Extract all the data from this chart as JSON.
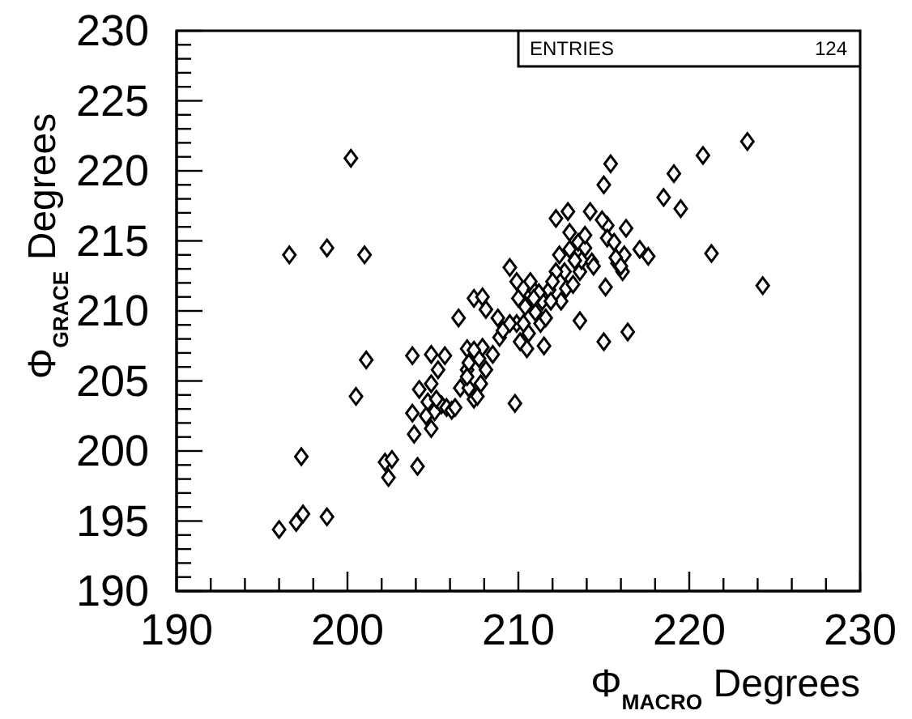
{
  "chart_data": {
    "type": "scatter",
    "xlabel": "Φ$_{MACRO}$ Degrees",
    "ylabel": "Φ$_{GRACE}$ Degrees",
    "annotations": [
      "ENTRIES",
      "124"
    ],
    "marker": "diamond",
    "grid": false,
    "xlim": [
      190,
      230
    ],
    "ylim": [
      190,
      230
    ],
    "xticks": [
      190,
      {
        "value": 192,
        "label": null
      },
      {
        "value": 194,
        "label": null
      },
      {
        "value": 196,
        "label": null
      },
      {
        "value": 198,
        "label": null
      },
      200,
      {
        "value": 202,
        "label": null
      },
      {
        "value": 204,
        "label": null
      },
      {
        "value": 206,
        "label": null
      },
      {
        "value": 208,
        "label": null
      },
      210,
      {
        "value": 212,
        "label": null
      },
      {
        "value": 214,
        "label": null
      },
      {
        "value": 216,
        "label": null
      },
      {
        "value": 218,
        "label": null
      },
      220,
      {
        "value": 222,
        "label": null
      },
      {
        "value": 224,
        "label": null
      },
      {
        "value": 226,
        "label": null
      },
      {
        "value": 228,
        "label": null
      },
      230
    ],
    "yticks": [
      190,
      {
        "value": 191,
        "label": null
      },
      {
        "value": 192,
        "label": null
      },
      {
        "value": 193,
        "label": null
      },
      {
        "value": 194,
        "label": null
      },
      195,
      {
        "value": 196,
        "label": null
      },
      {
        "value": 197,
        "label": null
      },
      {
        "value": 198,
        "label": null
      },
      {
        "value": 199,
        "label": null
      },
      200,
      {
        "value": 201,
        "label": null
      },
      {
        "value": 202,
        "label": null
      },
      {
        "value": 203,
        "label": null
      },
      {
        "value": 204,
        "label": null
      },
      205,
      {
        "value": 206,
        "label": null
      },
      {
        "value": 207,
        "label": null
      },
      {
        "value": 208,
        "label": null
      },
      {
        "value": 209,
        "label": null
      },
      210,
      {
        "value": 211,
        "label": null
      },
      {
        "value": 212,
        "label": null
      },
      {
        "value": 213,
        "label": null
      },
      {
        "value": 214,
        "label": null
      },
      215,
      {
        "value": 216,
        "label": null
      },
      {
        "value": 217,
        "label": null
      },
      {
        "value": 218,
        "label": null
      },
      {
        "value": 219,
        "label": null
      },
      220,
      {
        "value": 221,
        "label": null
      },
      {
        "value": 222,
        "label": null
      },
      {
        "value": 223,
        "label": null
      },
      {
        "value": 224,
        "label": null
      },
      225,
      {
        "value": 226,
        "label": null
      },
      {
        "value": 227,
        "label": null
      },
      {
        "value": 228,
        "label": null
      },
      {
        "value": 229,
        "label": null
      },
      230
    ],
    "x": [
      200.2,
      196.6,
      198.8,
      201.0,
      196.0,
      197.0,
      197.4,
      198.8,
      197.3,
      200.5,
      201.1,
      202.2,
      202.6,
      202.4,
      204.1,
      203.9,
      203.8,
      203.8,
      204.9,
      205.7,
      204.2,
      204.9,
      204.7,
      204.9,
      205.1,
      205.5,
      205.8,
      206.1,
      205.3,
      206.5,
      206.6,
      207.0,
      207.0,
      207.1,
      207.4,
      207.6,
      207.4,
      207.9,
      208.1,
      207.7,
      207.9,
      208.1,
      207.8,
      208.5,
      208.8,
      208.9,
      209.5,
      209.9,
      209.8,
      209.9,
      210.1,
      210.0,
      210.4,
      210.5,
      210.7,
      210.9,
      211.0,
      211.3,
      211.5,
      211.4,
      211.6,
      211.8,
      212.2,
      212.4,
      212.7,
      212.9,
      213.0,
      212.5,
      212.8,
      213.2,
      213.5,
      213.6,
      213.6,
      213.7,
      213.9,
      214.3,
      214.4,
      214.2,
      215.0,
      215.4,
      215.2,
      215.2,
      215.1,
      215.0,
      214.9,
      215.6,
      216.3,
      215.8,
      216.1,
      216.4,
      216.2,
      217.1,
      217.6,
      218.5,
      219.1,
      219.5,
      220.8,
      221.3,
      223.4,
      224.3,
      210.7,
      211.2,
      211.9,
      212.2,
      207.1,
      205.2,
      204.6,
      206.3,
      207.0,
      207.4,
      209.1,
      209.5,
      210.3,
      210.6,
      210.9,
      212.0,
      213.0,
      213.3,
      213.9,
      215.7,
      216.0
    ],
    "series": [
      {
        "color": "#000000",
        "values": [
          220.9,
          214.0,
          214.5,
          214.0,
          194.4,
          194.9,
          195.5,
          195.3,
          199.6,
          203.9,
          206.5,
          199.2,
          199.4,
          198.1,
          198.9,
          201.2,
          202.7,
          206.8,
          206.9,
          206.8,
          204.4,
          204.8,
          203.5,
          201.6,
          202.8,
          203.3,
          203.1,
          202.9,
          205.8,
          209.5,
          204.5,
          205.8,
          207.3,
          204.5,
          203.7,
          203.9,
          210.9,
          211.0,
          210.1,
          206.6,
          207.4,
          205.8,
          204.8,
          206.9,
          209.5,
          208.1,
          213.1,
          212.1,
          203.4,
          209.1,
          207.8,
          210.9,
          210.3,
          207.3,
          211.1,
          211.5,
          209.9,
          209.1,
          207.5,
          210.7,
          209.5,
          211.5,
          216.6,
          214.0,
          212.8,
          217.1,
          215.6,
          210.7,
          211.6,
          211.9,
          214.9,
          209.3,
          212.8,
          213.6,
          214.5,
          213.5,
          213.2,
          217.1,
          219.0,
          220.5,
          216.1,
          215.2,
          211.7,
          207.8,
          216.5,
          214.9,
          215.9,
          213.4,
          212.8,
          208.5,
          214.0,
          214.4,
          213.9,
          218.1,
          219.8,
          217.3,
          221.1,
          214.1,
          222.1,
          211.8,
          212.1,
          211.3,
          210.7,
          212.8,
          206.3,
          203.7,
          202.5,
          203.1,
          205.3,
          207.2,
          208.6,
          209.1,
          209.1,
          208.4,
          210.9,
          212.1,
          214.4,
          213.6,
          215.4,
          213.8,
          213.2
        ]
      }
    ]
  }
}
